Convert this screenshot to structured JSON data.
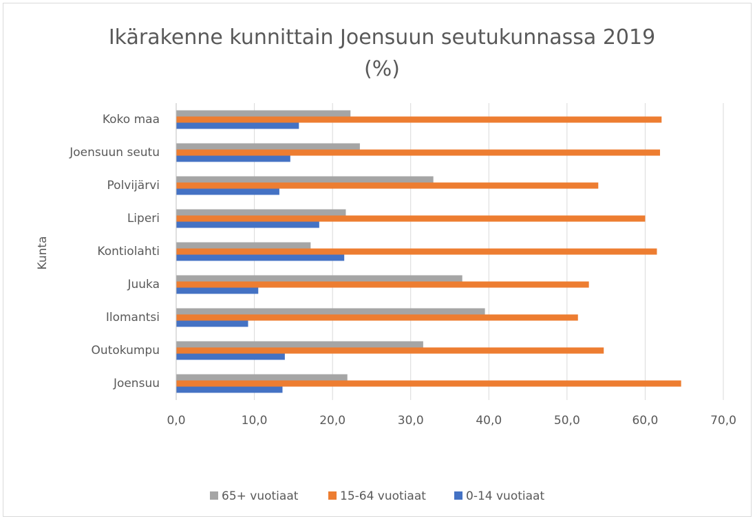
{
  "chart_data": {
    "type": "bar",
    "orientation": "horizontal",
    "title": "Ikärakenne kunnittain Joensuun seutukunnassa 2019 (%)",
    "y_label": "Kunta",
    "categories": [
      "Koko maa",
      "Joensuun seutu",
      "Polvijärvi",
      "Liperi",
      "Kontiolahti",
      "Juuka",
      "Ilomantsi",
      "Outokumpu",
      "Joensuu"
    ],
    "series": [
      {
        "name": "65+ vuotiaat",
        "color": "#a5a5a5",
        "values": [
          22.3,
          23.5,
          32.9,
          21.7,
          17.2,
          36.6,
          39.5,
          31.6,
          21.9
        ]
      },
      {
        "name": "15-64 vuotiaat",
        "color": "#ed7d31",
        "values": [
          62.1,
          61.9,
          54.0,
          60.0,
          61.5,
          52.8,
          51.4,
          54.7,
          64.6
        ]
      },
      {
        "name": "0-14 vuotiaat",
        "color": "#4472c4",
        "values": [
          15.7,
          14.6,
          13.2,
          18.3,
          21.5,
          10.5,
          9.2,
          13.9,
          13.6
        ]
      }
    ],
    "xlim": [
      0,
      70
    ],
    "xticks": [
      {
        "value": 0,
        "label": "0,0"
      },
      {
        "value": 10,
        "label": "10,0"
      },
      {
        "value": 20,
        "label": "20,0"
      },
      {
        "value": 30,
        "label": "30,0"
      },
      {
        "value": 40,
        "label": "40,0"
      },
      {
        "value": 50,
        "label": "50,0"
      },
      {
        "value": 60,
        "label": "60,0"
      },
      {
        "value": 70,
        "label": "70,0"
      }
    ],
    "grid": true,
    "legend": "bottom"
  }
}
